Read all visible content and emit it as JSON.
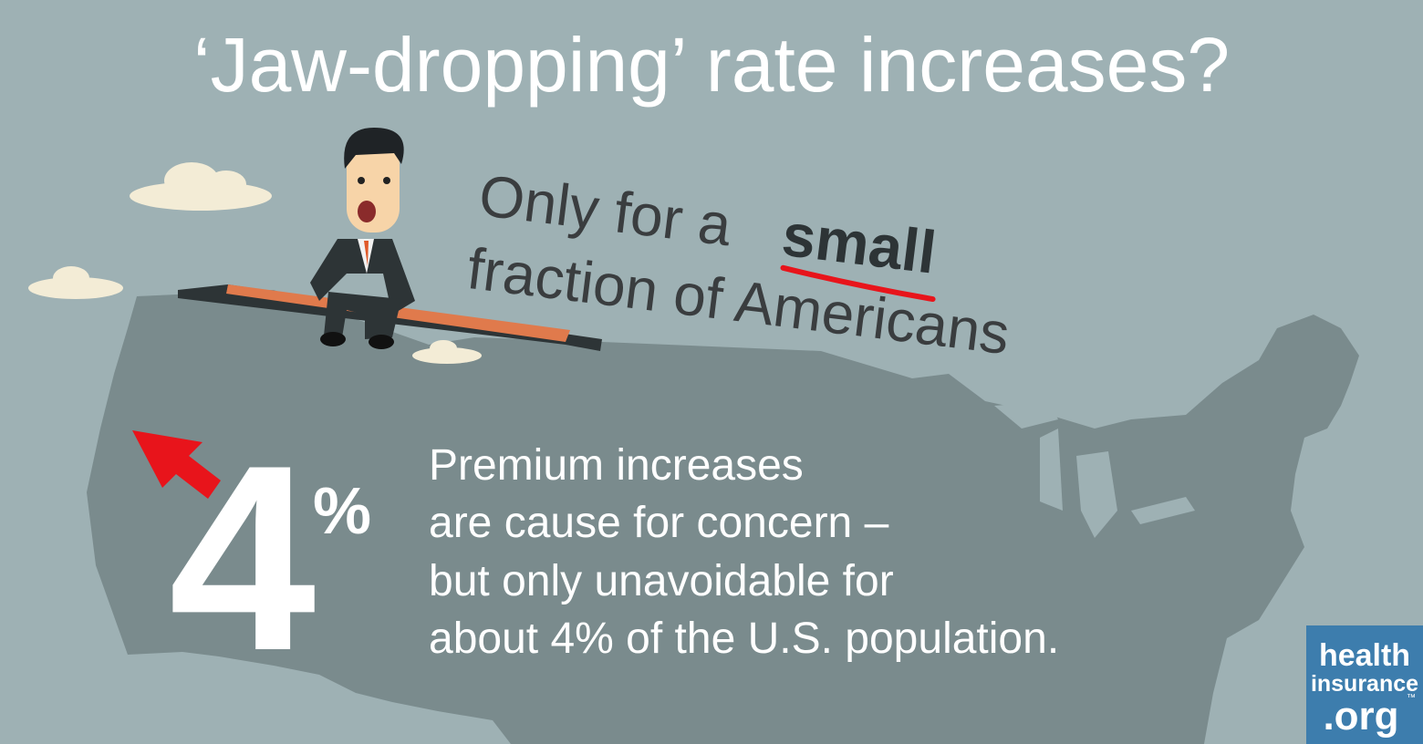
{
  "header": {
    "title": "‘Jaw-dropping’ rate increases?"
  },
  "callout": {
    "line1": "Only for a",
    "emphasis": "small",
    "line2": "fraction of Americans"
  },
  "stat": {
    "number": "4",
    "unit": "%"
  },
  "body": {
    "lines": [
      "Premium increases",
      "are cause for concern –",
      "but only unavoidable for",
      "about 4% of the U.S. population."
    ]
  },
  "logo": {
    "line1": "health",
    "line2": "insurance",
    "line3": ".org",
    "mark": "™"
  }
}
